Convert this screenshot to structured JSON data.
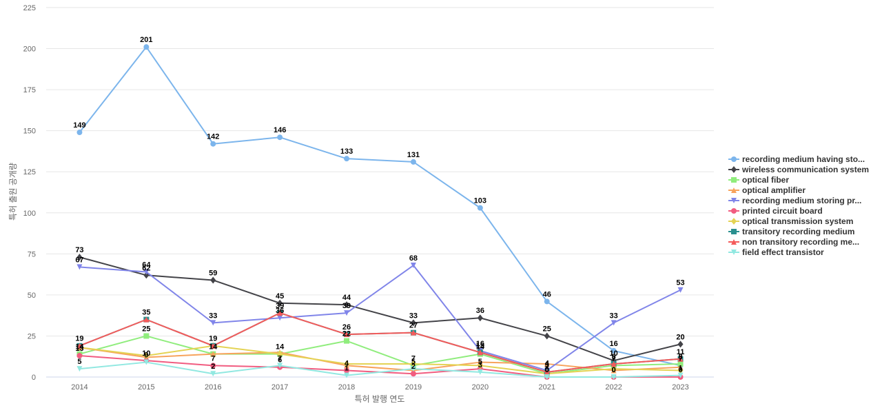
{
  "chart_data": {
    "type": "line",
    "title": "",
    "xlabel": "특허 발행 연도",
    "ylabel": "특허 출원 공개량",
    "ylim": [
      0,
      225
    ],
    "yticks": [
      0,
      25,
      50,
      75,
      100,
      125,
      150,
      175,
      200,
      225
    ],
    "grid": true,
    "legend_position": "right",
    "categories": [
      "2014",
      "2015",
      "2016",
      "2017",
      "2018",
      "2019",
      "2020",
      "2021",
      "2022",
      "2023"
    ],
    "series": [
      {
        "name": "recording medium having sto...",
        "color": "#7cb5ec",
        "marker": "circle",
        "labeled": true,
        "values": [
          149,
          201,
          142,
          146,
          133,
          131,
          103,
          46,
          16,
          7
        ]
      },
      {
        "name": "wireless communication system",
        "color": "#434348",
        "marker": "diamond",
        "labeled": true,
        "values": [
          73,
          62,
          59,
          45,
          44,
          33,
          36,
          25,
          10,
          20
        ]
      },
      {
        "name": "optical fiber",
        "color": "#90ed7d",
        "marker": "square",
        "labeled": true,
        "values": [
          14,
          25,
          14,
          14,
          22,
          7,
          14,
          2,
          7,
          8
        ]
      },
      {
        "name": "optical amplifier",
        "color": "#f7a35c",
        "marker": "triangle",
        "labeled": false,
        "values": [
          18,
          12,
          14,
          15,
          7,
          4,
          9,
          8,
          4,
          6
        ]
      },
      {
        "name": "recording medium storing pr...",
        "color": "#8085e9",
        "marker": "triangle-down",
        "labeled": true,
        "values": [
          67,
          64,
          33,
          36,
          39,
          68,
          16,
          4,
          33,
          53
        ]
      },
      {
        "name": "printed circuit board",
        "color": "#f15c80",
        "marker": "circle",
        "labeled": true,
        "values": [
          13,
          10,
          7,
          6,
          4,
          2,
          5,
          0,
          0,
          0
        ]
      },
      {
        "name": "optical transmission system",
        "color": "#e4d354",
        "marker": "diamond",
        "labeled": false,
        "values": [
          18,
          13,
          19,
          14,
          8,
          8,
          7,
          2,
          5,
          4
        ]
      },
      {
        "name": "transitory recording medium",
        "color": "#2b908f",
        "marker": "square",
        "labeled": true,
        "values": [
          19,
          35,
          19,
          39,
          26,
          27,
          15,
          3,
          8,
          11
        ]
      },
      {
        "name": "non transitory recording me...",
        "color": "#f45b5b",
        "marker": "triangle",
        "labeled": false,
        "values": [
          19,
          35,
          19,
          39,
          26,
          27,
          15,
          3,
          8,
          11
        ]
      },
      {
        "name": "field effect transistor",
        "color": "#91e8e1",
        "marker": "triangle-down",
        "labeled": true,
        "values": [
          5,
          9,
          2,
          7,
          1,
          5,
          3,
          0,
          0,
          1
        ]
      }
    ]
  }
}
